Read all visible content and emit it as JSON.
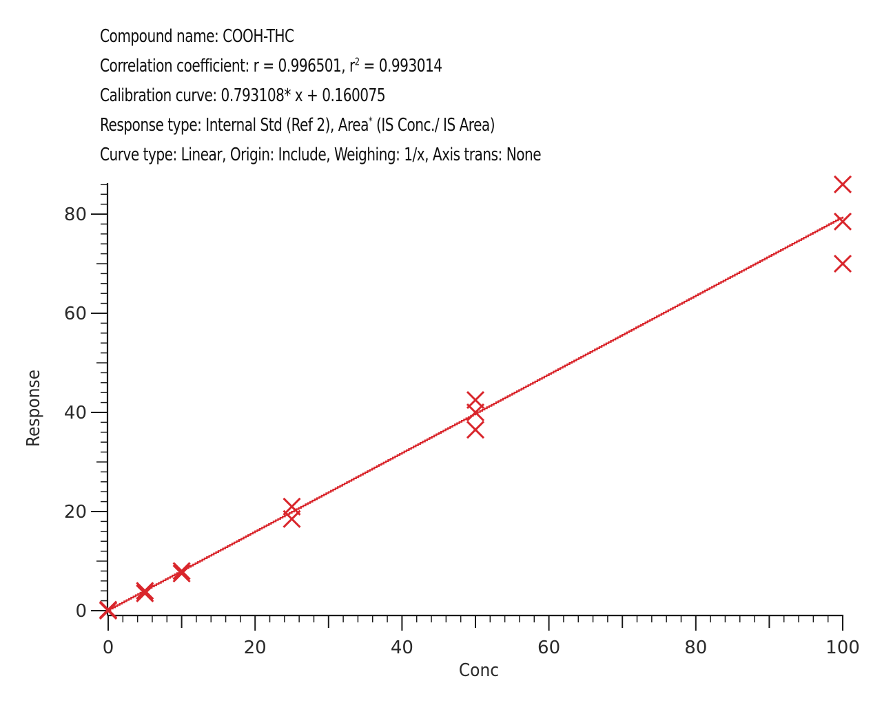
{
  "header": {
    "compound_name": "Compound name: COOH-THC",
    "correlation_prefix": "Correlation coefficient: r = 0.996501, r",
    "correlation_sup": "2",
    "correlation_suffix": " = 0.993014",
    "calibration_curve": "Calibration curve: 0.793108* x + 0.160075",
    "response_prefix": "Response type: Internal Std (Ref 2), Area",
    "response_sup": "*",
    "response_suffix": " (IS Conc./ IS Area)",
    "curve_type": "Curve type: Linear, Origin: Include, Weighing:  1/x, Axis trans: None"
  },
  "colors": {
    "series": "#d9262c",
    "axis": "#1a1a1a"
  },
  "chart_data": {
    "type": "scatter",
    "xlabel": "Conc",
    "ylabel": "Response",
    "xlim": [
      0,
      100
    ],
    "ylim": [
      0,
      86
    ],
    "x_ticks": [
      0,
      20,
      40,
      60,
      80,
      100
    ],
    "y_ticks": [
      0,
      20,
      40,
      60,
      80
    ],
    "x_tick_labels": [
      "0",
      "20",
      "40",
      "60",
      "80",
      "100"
    ],
    "y_tick_labels": [
      "0",
      "20",
      "40",
      "60",
      "80"
    ],
    "x_minor_step": 2,
    "y_minor_step": 2,
    "grid": false,
    "fit_line": {
      "slope": 0.793108,
      "intercept": 0.160075,
      "x_range": [
        0,
        100
      ]
    },
    "points": [
      {
        "x": 0,
        "y": 0
      },
      {
        "x": 0,
        "y": 0.2
      },
      {
        "x": 5,
        "y": 3.5
      },
      {
        "x": 5,
        "y": 4.0
      },
      {
        "x": 10,
        "y": 7.5
      },
      {
        "x": 10,
        "y": 8.0
      },
      {
        "x": 25,
        "y": 18.5
      },
      {
        "x": 25,
        "y": 21.0
      },
      {
        "x": 50,
        "y": 36.5
      },
      {
        "x": 50,
        "y": 40.0
      },
      {
        "x": 50,
        "y": 42.5
      },
      {
        "x": 100,
        "y": 70.0
      },
      {
        "x": 100,
        "y": 78.5
      },
      {
        "x": 100,
        "y": 86.0
      }
    ]
  }
}
